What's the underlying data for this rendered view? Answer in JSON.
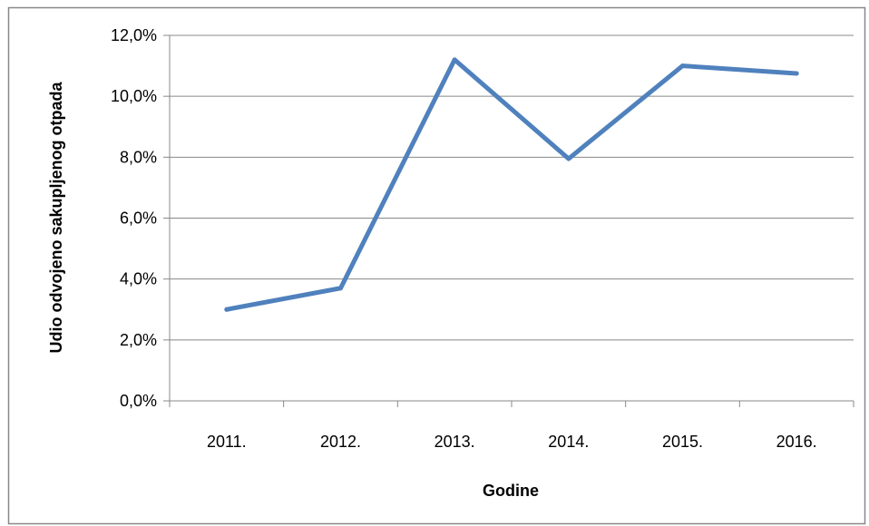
{
  "chart_data": {
    "type": "line",
    "title": "",
    "xlabel": "Godine",
    "ylabel": "Udio odvojeno sakupljenog otpada",
    "categories": [
      "2011.",
      "2012.",
      "2013.",
      "2014.",
      "2015.",
      "2016."
    ],
    "series": [
      {
        "values": [
          3.0,
          3.7,
          11.2,
          7.95,
          11.0,
          10.75
        ],
        "color": "#4f81bd"
      }
    ],
    "ylim": [
      0,
      12
    ],
    "yticks": [
      0,
      2,
      4,
      6,
      8,
      10,
      12
    ],
    "ytick_labels": [
      "0,0%",
      "2,0%",
      "4,0%",
      "6,0%",
      "8,0%",
      "10,0%",
      "12,0%"
    ],
    "grid": true,
    "legend": "none"
  },
  "colors": {
    "gridline": "#888888",
    "axis": "#888888",
    "frame": "#888888",
    "line": "#4f81bd"
  }
}
